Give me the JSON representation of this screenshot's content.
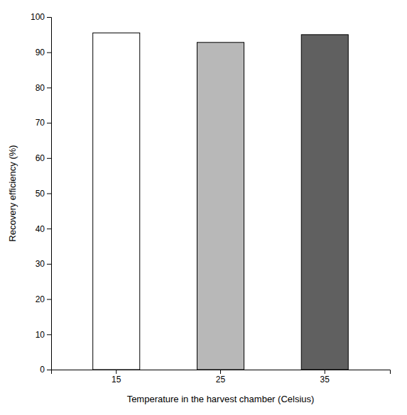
{
  "chart_data": {
    "type": "bar",
    "categories": [
      "15",
      "25",
      "35"
    ],
    "values": [
      95.5,
      92.8,
      95.0
    ],
    "colors": [
      "white",
      "#b8b8b8",
      "#606060"
    ],
    "xlabel": "Temperature in the harvest chamber (Celsius)",
    "ylabel": "Recovery efficiency (%)",
    "ylim": [
      0,
      100
    ],
    "yticks": [
      0,
      10,
      20,
      30,
      40,
      50,
      60,
      70,
      80,
      90,
      100
    ],
    "grid": false
  }
}
